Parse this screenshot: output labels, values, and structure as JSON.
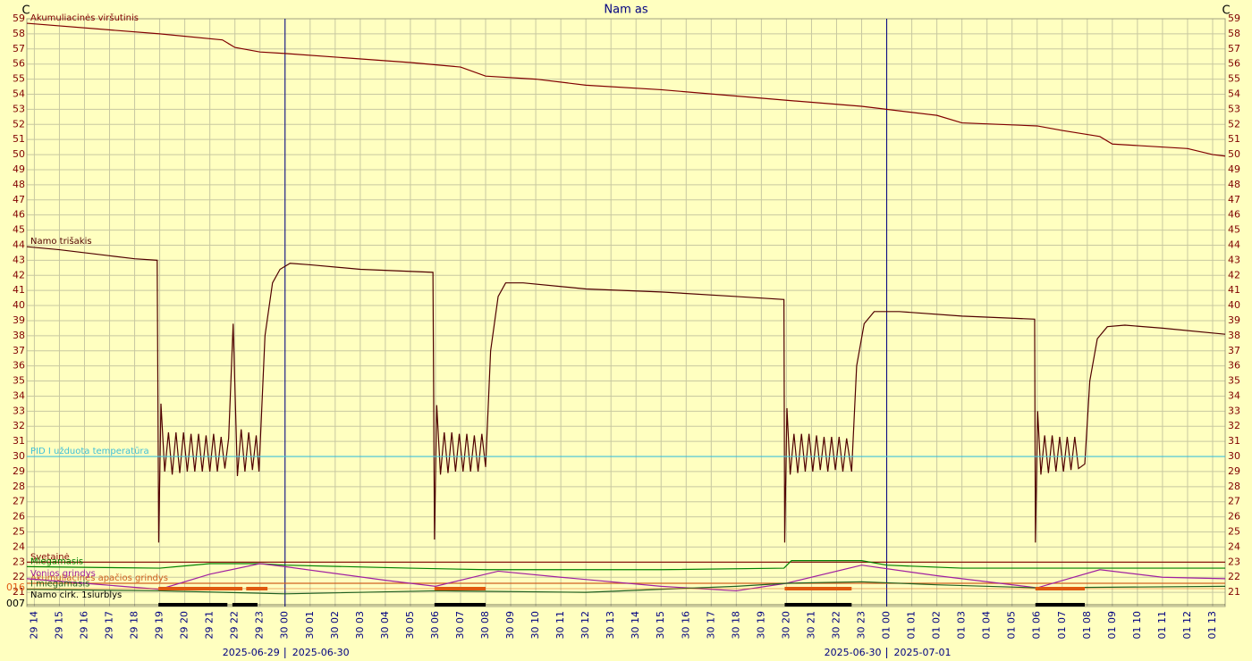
{
  "chart_data": {
    "type": "line",
    "title": "Nam as",
    "y_unit": "C",
    "y2_unit": "C",
    "background": "#ffffc0",
    "grid": true,
    "xlim": [
      -0.3,
      47.5
    ],
    "ylim": [
      20.06,
      59
    ],
    "yticks": [
      21,
      22,
      23,
      24,
      25,
      26,
      27,
      28,
      29,
      30,
      31,
      32,
      33,
      34,
      35,
      36,
      37,
      38,
      39,
      40,
      41,
      42,
      43,
      44,
      45,
      46,
      47,
      48,
      49,
      50,
      51,
      52,
      53,
      54,
      55,
      56,
      57,
      58,
      59
    ],
    "xticks": [
      {
        "value": 0,
        "label": "29 14"
      },
      {
        "value": 1,
        "label": "29 15"
      },
      {
        "value": 2,
        "label": "29 16"
      },
      {
        "value": 3,
        "label": "29 17"
      },
      {
        "value": 4,
        "label": "29 18"
      },
      {
        "value": 5,
        "label": "29 19"
      },
      {
        "value": 6,
        "label": "29 20"
      },
      {
        "value": 7,
        "label": "29 21"
      },
      {
        "value": 8,
        "label": "29 22"
      },
      {
        "value": 9,
        "label": "29 23"
      },
      {
        "value": 10,
        "label": "30 00"
      },
      {
        "value": 11,
        "label": "30 01"
      },
      {
        "value": 12,
        "label": "30 02"
      },
      {
        "value": 13,
        "label": "30 03"
      },
      {
        "value": 14,
        "label": "30 04"
      },
      {
        "value": 15,
        "label": "30 05"
      },
      {
        "value": 16,
        "label": "30 06"
      },
      {
        "value": 17,
        "label": "30 07"
      },
      {
        "value": 18,
        "label": "30 08"
      },
      {
        "value": 19,
        "label": "30 09"
      },
      {
        "value": 20,
        "label": "30 10"
      },
      {
        "value": 21,
        "label": "30 11"
      },
      {
        "value": 22,
        "label": "30 12"
      },
      {
        "value": 23,
        "label": "30 13"
      },
      {
        "value": 24,
        "label": "30 14"
      },
      {
        "value": 25,
        "label": "30 15"
      },
      {
        "value": 26,
        "label": "30 16"
      },
      {
        "value": 27,
        "label": "30 17"
      },
      {
        "value": 28,
        "label": "30 18"
      },
      {
        "value": 29,
        "label": "30 19"
      },
      {
        "value": 30,
        "label": "30 20"
      },
      {
        "value": 31,
        "label": "30 21"
      },
      {
        "value": 32,
        "label": "30 22"
      },
      {
        "value": 33,
        "label": "30 23"
      },
      {
        "value": 34,
        "label": "01 00"
      },
      {
        "value": 35,
        "label": "01 01"
      },
      {
        "value": 36,
        "label": "01 02"
      },
      {
        "value": 37,
        "label": "01 03"
      },
      {
        "value": 38,
        "label": "01 04"
      },
      {
        "value": 39,
        "label": "01 05"
      },
      {
        "value": 40,
        "label": "01 06"
      },
      {
        "value": 41,
        "label": "01 07"
      },
      {
        "value": 42,
        "label": "01 08"
      },
      {
        "value": 43,
        "label": "01 09"
      },
      {
        "value": 44,
        "label": "01 10"
      },
      {
        "value": 45,
        "label": "01 11"
      },
      {
        "value": 46,
        "label": "01 12"
      },
      {
        "value": 47,
        "label": "01 13"
      }
    ],
    "day_boundaries": [
      {
        "x": 10,
        "before": "2025-06-29",
        "after": "2025-06-30",
        "color": "#000080"
      },
      {
        "x": 34,
        "before": "2025-06-30",
        "after": "2025-07-01",
        "color": "#000080"
      }
    ],
    "series": [
      {
        "name": "Akumuliacinės viršutinis",
        "color": "#800000",
        "x": [
          -0.3,
          5,
          7.5,
          8,
          9,
          10,
          15,
          17,
          18,
          20,
          22,
          25,
          30,
          33,
          36,
          37,
          40,
          41,
          42.5,
          43,
          46,
          47,
          47.5
        ],
        "values": [
          58.7,
          58.0,
          57.6,
          57.1,
          56.8,
          56.7,
          56.1,
          55.8,
          55.2,
          55.0,
          54.6,
          54.3,
          53.6,
          53.2,
          52.6,
          52.1,
          51.9,
          51.6,
          51.2,
          50.7,
          50.4,
          50.0,
          49.9
        ]
      },
      {
        "name": "Namo trišakis",
        "color": "#500000",
        "x": [
          -0.3,
          1,
          2,
          3,
          4,
          4.9,
          4.96,
          5.05,
          5.2,
          5.35,
          5.5,
          5.65,
          5.8,
          5.95,
          6.1,
          6.25,
          6.4,
          6.55,
          6.7,
          6.85,
          7.0,
          7.15,
          7.3,
          7.45,
          7.6,
          7.75,
          7.93,
          8.1,
          8.25,
          8.4,
          8.55,
          8.7,
          8.85,
          8.96,
          9.2,
          9.5,
          9.8,
          10.2,
          11,
          13,
          15.9,
          15.96,
          16.05,
          16.2,
          16.35,
          16.5,
          16.65,
          16.8,
          16.95,
          17.1,
          17.25,
          17.4,
          17.55,
          17.7,
          17.85,
          18.0,
          18.2,
          18.5,
          18.8,
          19.5,
          22,
          25,
          28,
          29.9,
          29.93,
          30.02,
          30.15,
          30.3,
          30.45,
          30.6,
          30.75,
          30.9,
          31.05,
          31.2,
          31.35,
          31.5,
          31.65,
          31.8,
          31.95,
          32.1,
          32.25,
          32.4,
          32.6,
          32.8,
          33.1,
          33.5,
          34.5,
          37,
          39.9,
          39.93,
          40.02,
          40.15,
          40.3,
          40.45,
          40.6,
          40.75,
          40.9,
          41.05,
          41.2,
          41.35,
          41.5,
          41.65,
          41.9,
          42.1,
          42.4,
          42.8,
          43.5,
          45,
          47.5
        ],
        "values": [
          43.9,
          43.7,
          43.5,
          43.3,
          43.1,
          43.0,
          24.3,
          33.5,
          29,
          31.6,
          28.8,
          31.6,
          28.9,
          31.6,
          29,
          31.5,
          29,
          31.5,
          29,
          31.4,
          29,
          31.5,
          29,
          31.3,
          29.2,
          31.2,
          38.8,
          28.7,
          31.8,
          29,
          31.6,
          29.1,
          31.4,
          29,
          38,
          41.5,
          42.4,
          42.8,
          42.7,
          42.4,
          42.2,
          24.5,
          33.4,
          28.8,
          31.6,
          28.9,
          31.6,
          29,
          31.5,
          29,
          31.5,
          29,
          31.4,
          29,
          31.5,
          29.3,
          37,
          40.6,
          41.5,
          41.5,
          41.1,
          40.9,
          40.6,
          40.4,
          24.3,
          33.2,
          28.8,
          31.5,
          28.9,
          31.5,
          29,
          31.5,
          29,
          31.4,
          29.1,
          31.3,
          29,
          31.3,
          29.1,
          31.3,
          29,
          31.2,
          29,
          36,
          38.8,
          39.6,
          39.6,
          39.3,
          39.1,
          24.3,
          33,
          28.8,
          31.4,
          28.9,
          31.4,
          29,
          31.3,
          29,
          31.3,
          29.1,
          31.3,
          29.2,
          29.5,
          35,
          37.8,
          38.6,
          38.7,
          38.5,
          38.1
        ]
      },
      {
        "name": "PID I užduota temperatūra",
        "color": "#40c0d8",
        "x": [
          -0.3,
          47.5
        ],
        "values": [
          30,
          30
        ]
      },
      {
        "name": "Svetainė",
        "color": "#800000",
        "x": [
          -0.3,
          47.5
        ],
        "values": [
          23,
          23
        ]
      },
      {
        "name": "Miegamasis",
        "color": "#008000",
        "x": [
          -0.3,
          5,
          7,
          9,
          10,
          15,
          18,
          22,
          25,
          29.9,
          30.2,
          33,
          34,
          37,
          41,
          45,
          47.5
        ],
        "values": [
          22.7,
          22.6,
          22.9,
          22.9,
          22.8,
          22.6,
          22.5,
          22.5,
          22.5,
          22.6,
          23.1,
          23.1,
          22.8,
          22.6,
          22.6,
          22.6,
          22.6
        ]
      },
      {
        "name": "Akumuliacinės apačios grindys",
        "color": "#d06020",
        "x": [
          -0.3,
          47.5
        ],
        "values": [
          21.6,
          21.6
        ]
      },
      {
        "name": "Vonios grindys",
        "color": "#a020a0",
        "x": [
          -0.3,
          2,
          5,
          7,
          9,
          10,
          14,
          16,
          18.5,
          21,
          25,
          28,
          30,
          33,
          36,
          40,
          42.5,
          45,
          47.5
        ],
        "values": [
          21.9,
          21.6,
          21.2,
          22.2,
          22.9,
          22.7,
          21.8,
          21.4,
          22.4,
          22.0,
          21.4,
          21.1,
          21.6,
          22.8,
          22.1,
          21.3,
          22.5,
          22.0,
          21.9
        ]
      },
      {
        "name": "I miegamasis",
        "color": "#206020",
        "x": [
          -0.3,
          5,
          10,
          16,
          22,
          28,
          30,
          33,
          36,
          40,
          47.5
        ],
        "values": [
          21.2,
          21.1,
          20.9,
          21.1,
          21.0,
          21.4,
          21.6,
          21.7,
          21.5,
          21.3,
          21.4
        ]
      }
    ],
    "tracks": [
      {
        "level": "016",
        "color": "#e05a10",
        "intervals": [
          [
            4.95,
            8.3
          ],
          [
            8.45,
            9.3
          ],
          [
            15.96,
            18.0
          ],
          [
            29.93,
            32.6
          ],
          [
            39.93,
            41.9
          ]
        ]
      },
      {
        "level": "007",
        "name": "Namo cirk. 1siurblys",
        "color": "#000000",
        "intervals": [
          [
            4.95,
            7.7
          ],
          [
            7.9,
            8.9
          ],
          [
            15.96,
            18.0
          ],
          [
            29.93,
            32.6
          ],
          [
            39.93,
            41.9
          ]
        ]
      }
    ]
  }
}
